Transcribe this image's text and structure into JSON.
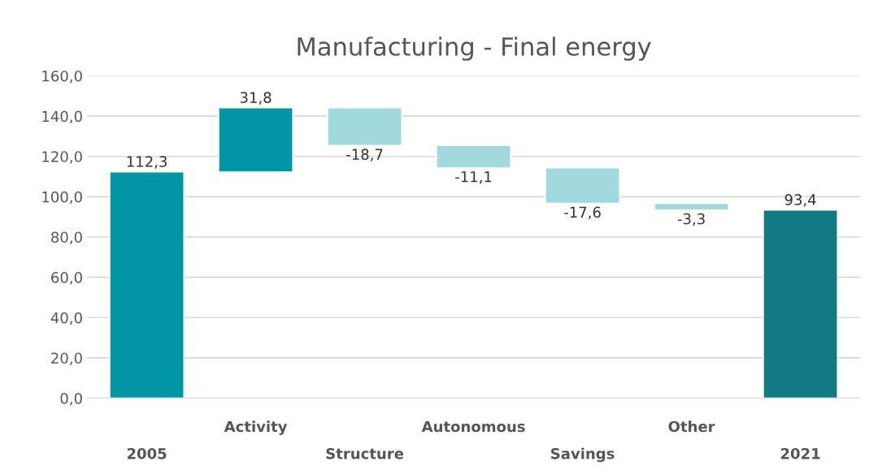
{
  "chart_data": {
    "type": "bar",
    "title": "Manufacturing - Final energy",
    "categories": [
      "2005",
      "Activity",
      "Structure",
      "Autonomous",
      "Savings",
      "Other",
      "2021"
    ],
    "values": [
      112.3,
      31.8,
      -18.7,
      -11.1,
      -17.6,
      -3.3,
      93.4
    ],
    "base": [
      0,
      112.3,
      144.1,
      125.4,
      114.3,
      96.7,
      0
    ],
    "colors": [
      "#0396a6",
      "#0396a6",
      "#a0d9de",
      "#a0d9de",
      "#a0d9de",
      "#a0d9de",
      "#127a82"
    ],
    "value_labels": [
      "112,3",
      "31,8",
      "-18,7",
      "-11,1",
      "-17,6",
      "-3,3",
      "93,4"
    ],
    "ylim": [
      0,
      160
    ],
    "yticks": [
      {
        "value": 0,
        "label": "0,0"
      },
      {
        "value": 20,
        "label": "20,0"
      },
      {
        "value": 40,
        "label": "40,0"
      },
      {
        "value": 60,
        "label": "60,0"
      },
      {
        "value": 80,
        "label": "80,0"
      },
      {
        "value": 100,
        "label": "100,0"
      },
      {
        "value": 120,
        "label": "120,0"
      },
      {
        "value": 140,
        "label": "140,0"
      },
      {
        "value": 160,
        "label": "160,0"
      }
    ],
    "grid": "y"
  }
}
